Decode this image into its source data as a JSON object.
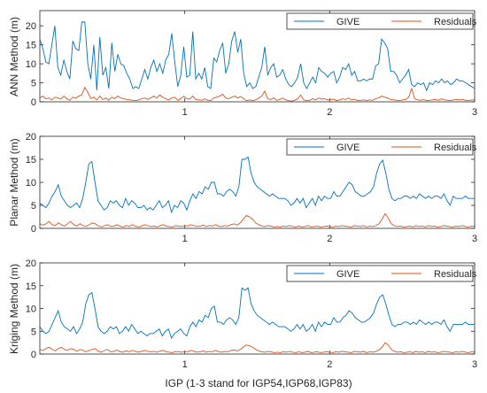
{
  "colors": {
    "give": "#0072BD",
    "residuals": "#D95319",
    "axis": "#262626",
    "background": "#ffffff"
  },
  "xlabel": "IGP (1-3 stand for IGP54,IGP68,IGP83)",
  "chart_data": [
    {
      "type": "line",
      "ylabel": "ANN Method (m)",
      "xlim": [
        0,
        3
      ],
      "ylim": [
        0,
        24
      ],
      "yticks": [
        0,
        5,
        10,
        15,
        20
      ],
      "xticks": [
        1,
        2,
        3
      ],
      "legend": "top-right",
      "series": [
        {
          "name": "GIVE",
          "values": [
            16.5,
            14,
            10.5,
            10,
            15,
            20,
            9,
            7,
            11,
            8,
            6,
            16,
            14,
            13.5,
            21,
            21,
            10,
            6,
            15,
            3,
            17,
            7,
            9,
            3.5,
            15.5,
            8,
            12.5,
            10,
            9.5,
            7.5,
            6,
            3.5,
            4,
            3.5,
            6,
            8.5,
            6,
            9,
            11,
            8,
            10,
            7.5,
            11,
            12.5,
            18,
            10.5,
            4,
            7,
            14.5,
            6.5,
            7,
            18.5,
            6,
            7.5,
            6,
            9,
            4,
            3.5,
            11.5,
            10.5,
            13.5,
            15.5,
            7.5,
            10,
            16,
            18.5,
            13,
            16.5,
            7.5,
            4,
            5,
            3.5,
            4,
            6.5,
            9,
            14.5,
            7,
            9,
            10,
            6.5,
            7,
            8.5,
            6,
            4.5,
            4,
            5,
            6.5,
            10,
            5,
            3.5,
            5,
            6.5,
            5,
            9,
            8,
            7.5,
            6.5,
            7.5,
            8,
            5,
            6.5,
            9,
            8.5,
            10,
            7,
            8,
            5.5,
            5.5,
            6,
            5.5,
            6,
            6,
            9.5,
            10,
            16.5,
            15.5,
            14,
            8,
            8,
            7,
            5,
            6,
            7,
            8.5,
            4.5,
            4,
            5,
            4.5,
            5,
            3,
            5,
            4.5,
            5.5,
            5,
            6,
            5,
            5.5,
            4.5,
            5,
            6,
            5.5,
            5.5,
            5,
            4.5,
            4,
            3.5
          ]
        },
        {
          "name": "Residuals",
          "values": [
            1,
            1.5,
            0.8,
            1,
            0.5,
            1.2,
            1,
            0.7,
            1.5,
            0.8,
            0.4,
            1.2,
            1,
            1.5,
            1.8,
            3.8,
            2.5,
            0.8,
            1.2,
            0.5,
            1.5,
            0.6,
            1,
            0.4,
            1.2,
            0.8,
            1.5,
            1,
            0.8,
            0.6,
            0.5,
            0.4,
            0.3,
            0.5,
            0.8,
            1,
            0.6,
            1,
            1.5,
            1,
            1.8,
            1.2,
            0.8,
            0.5,
            1,
            1.2,
            0.4,
            0.8,
            1.5,
            0.8,
            0.7,
            1.5,
            0.6,
            0.5,
            0.4,
            0.8,
            0.4,
            0.3,
            1,
            1.2,
            1.5,
            2,
            1,
            0.8,
            1.2,
            1.5,
            1,
            1.4,
            0.8,
            0.3,
            0.5,
            0.3,
            0.5,
            1,
            1.5,
            2.8,
            0.8,
            0.6,
            1,
            0.4,
            0.6,
            1,
            0.5,
            0.3,
            0.2,
            0.4,
            0.8,
            1.8,
            0.5,
            0.3,
            0.4,
            0.8,
            0.5,
            1,
            0.7,
            0.8,
            0.5,
            0.6,
            0.7,
            0.3,
            0.5,
            0.8,
            0.6,
            1,
            0.5,
            0.7,
            0.3,
            0.4,
            0.5,
            0.3,
            0.5,
            0.4,
            0.8,
            1,
            1.5,
            1.2,
            1,
            0.6,
            0.5,
            0.4,
            0.3,
            0.5,
            0.6,
            1.2,
            3.5,
            0.8,
            0.5,
            0.4,
            0.6,
            0.3,
            0.4,
            0.5,
            0.6,
            0.4,
            0.8,
            0.5,
            0.4,
            0.3,
            0.5,
            0.6,
            0.5,
            0.6,
            0.4,
            0.3,
            0.5,
            0.4
          ]
        }
      ]
    },
    {
      "type": "line",
      "ylabel": "Planar Method (m)",
      "xlim": [
        0,
        3
      ],
      "ylim": [
        0,
        20
      ],
      "yticks": [
        0,
        5,
        10,
        15,
        20
      ],
      "xticks": [
        1,
        2,
        3
      ],
      "legend": "top-right",
      "series": [
        {
          "name": "GIVE",
          "values": [
            5.5,
            5,
            4.5,
            5.5,
            7,
            8,
            9.5,
            7,
            6,
            5,
            4.5,
            5,
            5.5,
            4.5,
            6.5,
            10,
            14,
            14.5,
            10,
            6,
            5,
            4,
            4.5,
            6,
            5.5,
            6,
            5,
            4.5,
            6.5,
            5,
            6,
            5.5,
            4.5,
            4.5,
            5,
            4,
            4.5,
            4,
            5,
            6,
            4.5,
            5,
            6,
            3.5,
            5,
            4.5,
            6,
            5.5,
            4,
            6,
            7.5,
            6.5,
            8,
            7.5,
            9,
            8.5,
            10,
            10,
            7.5,
            7.5,
            7,
            8,
            8.5,
            8,
            7,
            9,
            15,
            15,
            15.5,
            12,
            10,
            9,
            8.5,
            8,
            7.5,
            7,
            7.5,
            7,
            6.5,
            6.5,
            6.5,
            6,
            5,
            5.5,
            6.5,
            5.5,
            6.5,
            4.5,
            5.5,
            6.5,
            5,
            7,
            6,
            7,
            6.5,
            6.5,
            8,
            7,
            7,
            8,
            9,
            10,
            9.5,
            8,
            7.5,
            7,
            7,
            7.5,
            8,
            9,
            12,
            14,
            14.8,
            12,
            8.5,
            6.5,
            6,
            6.5,
            6.5,
            7,
            7,
            6.5,
            7,
            6.5,
            7.5,
            7,
            6.5,
            7,
            6.5,
            7,
            7,
            6.5,
            7.5,
            6,
            5,
            7,
            6.5,
            6.5,
            6.5,
            7,
            6.5,
            6.5,
            6.5
          ]
        },
        {
          "name": "Residuals",
          "values": [
            1,
            0.7,
            1,
            1.5,
            0.8,
            0.6,
            1.2,
            0.8,
            0.5,
            1,
            1.5,
            0.8,
            0.5,
            1,
            0.6,
            0.4,
            0.8,
            1.2,
            1,
            0.5,
            0.3,
            0.6,
            0.8,
            0.4,
            0.5,
            0.8,
            0.5,
            0.3,
            0.6,
            0.4,
            0.8,
            0.5,
            0.3,
            0.5,
            0.8,
            0.6,
            0.4,
            0.5,
            0.3,
            0.6,
            0.8,
            0.5,
            0.4,
            0.3,
            0.6,
            0.5,
            0.4,
            0.6,
            0.5,
            0.8,
            0.6,
            0.4,
            0.5,
            0.7,
            0.4,
            0.6,
            0.5,
            0.8,
            0.5,
            0.4,
            0.6,
            0.5,
            0.8,
            1,
            0.7,
            1.2,
            2,
            2.8,
            2.5,
            2,
            1.2,
            0.8,
            0.5,
            0.4,
            0.6,
            0.5,
            0.3,
            0.4,
            0.3,
            0.5,
            0.4,
            0.6,
            0.4,
            0.3,
            0.5,
            0.3,
            0.4,
            0.6,
            0.3,
            0.4,
            0.5,
            0.3,
            0.4,
            0.5,
            0.4,
            0.3,
            0.5,
            0.4,
            0.6,
            0.5,
            0.4,
            0.3,
            0.6,
            0.5,
            0.4,
            0.6,
            0.3,
            0.5,
            0.4,
            0.6,
            1,
            2,
            3.2,
            2.2,
            1,
            0.6,
            0.4,
            0.5,
            0.3,
            0.4,
            0.5,
            0.3,
            0.6,
            0.4,
            0.5,
            0.3,
            0.6,
            0.4,
            0.5,
            0.3,
            0.4,
            0.6,
            0.5,
            0.4,
            0.3,
            0.5,
            0.4,
            0.6,
            0.4,
            0.3,
            0.5,
            0.4
          ]
        }
      ]
    },
    {
      "type": "line",
      "ylabel": "Kriging Method (m)",
      "xlim": [
        0,
        3
      ],
      "ylim": [
        0,
        20
      ],
      "yticks": [
        0,
        5,
        10,
        15,
        20
      ],
      "xticks": [
        1,
        2,
        3
      ],
      "legend": "top-right",
      "series": [
        {
          "name": "GIVE",
          "values": [
            6,
            5,
            4.5,
            5,
            6.5,
            8,
            9.5,
            7,
            6,
            5.5,
            5,
            6,
            4.5,
            5.5,
            7,
            11,
            13,
            13.5,
            10,
            6,
            5,
            4.5,
            5,
            6,
            5.5,
            6,
            4.5,
            5,
            6,
            5,
            6.5,
            5.5,
            4.5,
            5,
            4.5,
            4,
            4.5,
            4.5,
            5,
            5.5,
            4,
            5,
            5.5,
            3.5,
            4.5,
            5,
            5.5,
            4.5,
            4,
            6,
            7,
            6,
            7.5,
            7,
            8.5,
            8,
            10,
            10.5,
            7,
            7,
            6.5,
            7.5,
            8,
            7.5,
            6.5,
            8,
            14.5,
            14,
            14.5,
            11,
            9.5,
            8.5,
            8,
            7.5,
            7,
            6.5,
            7,
            6.5,
            6,
            6,
            6,
            5.5,
            5,
            5.5,
            6.5,
            5.5,
            6.5,
            5,
            5.5,
            6.5,
            5,
            7,
            6,
            7,
            6.5,
            6.5,
            8,
            7,
            7,
            8,
            8.5,
            9.5,
            9,
            8,
            7.5,
            7,
            7,
            7.5,
            8,
            9,
            11,
            12.5,
            13,
            11,
            8.5,
            6.5,
            6,
            6.5,
            6.5,
            7,
            7,
            6.5,
            7,
            6.5,
            7.5,
            7,
            6.5,
            7,
            6.5,
            7,
            7,
            6.5,
            7.5,
            6,
            5,
            6.5,
            6.5,
            6.5,
            6.5,
            7,
            6.5,
            6.5,
            6.5
          ]
        },
        {
          "name": "Residuals",
          "values": [
            1,
            0.8,
            1.2,
            1.5,
            1,
            0.7,
            1.2,
            1.5,
            1,
            0.8,
            1.2,
            1,
            0.6,
            1,
            0.8,
            0.5,
            0.8,
            1,
            1.2,
            0.6,
            0.4,
            0.8,
            1,
            0.5,
            0.6,
            0.9,
            0.5,
            0.4,
            0.7,
            0.5,
            0.8,
            0.6,
            0.4,
            0.6,
            0.8,
            0.6,
            0.5,
            0.6,
            0.4,
            0.7,
            0.8,
            0.5,
            0.4,
            0.3,
            0.6,
            0.5,
            0.4,
            0.6,
            0.5,
            0.8,
            0.6,
            0.4,
            0.5,
            0.7,
            0.4,
            0.6,
            0.5,
            0.8,
            0.5,
            0.4,
            0.6,
            0.5,
            0.8,
            0.9,
            0.7,
            1,
            1.5,
            2,
            1.8,
            1.5,
            1,
            0.7,
            0.5,
            0.4,
            0.6,
            0.5,
            0.3,
            0.4,
            0.3,
            0.5,
            0.4,
            0.6,
            0.4,
            0.3,
            0.5,
            0.3,
            0.4,
            0.6,
            0.3,
            0.4,
            0.5,
            0.3,
            0.4,
            0.5,
            0.4,
            0.3,
            0.5,
            0.4,
            0.6,
            0.5,
            0.4,
            0.3,
            0.6,
            0.5,
            0.4,
            0.6,
            0.3,
            0.5,
            0.4,
            0.6,
            0.9,
            1.5,
            2.5,
            2,
            1,
            0.6,
            0.4,
            0.5,
            0.3,
            0.4,
            0.5,
            0.3,
            0.6,
            0.4,
            0.5,
            0.3,
            0.6,
            0.4,
            0.5,
            0.3,
            0.4,
            0.6,
            0.5,
            0.4,
            0.3,
            0.5,
            0.4,
            0.6,
            0.4,
            0.3,
            0.5,
            0.4
          ]
        }
      ]
    }
  ]
}
